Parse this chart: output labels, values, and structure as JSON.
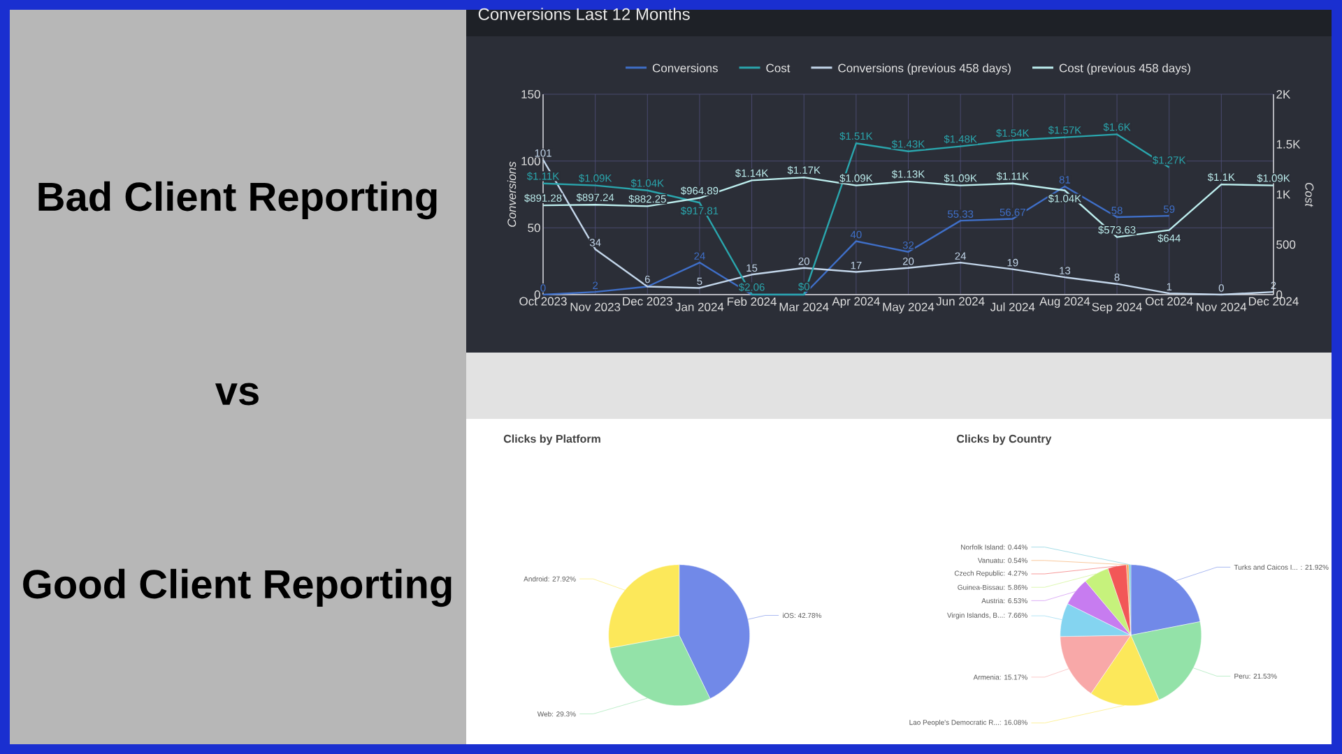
{
  "chart_data": [
    {
      "type": "other",
      "annotations": [
        "Bad Client Reporting",
        "vs",
        "Good Client Reporting"
      ]
    },
    {
      "type": "line",
      "title": "Conversions Last 12 Months",
      "ylabel": "Conversions",
      "y2label": "Cost",
      "categories": [
        "Oct 2023",
        "Nov 2023",
        "Dec 2023",
        "Jan 2024",
        "Feb 2024",
        "Mar 2024",
        "Apr 2024",
        "May 2024",
        "Jun 2024",
        "Jul 2024",
        "Aug 2024",
        "Sep 2024",
        "Oct 2024",
        "Nov 2024",
        "Dec 2024"
      ],
      "ylim": [
        0,
        150
      ],
      "yticks": [
        0,
        50,
        100,
        150
      ],
      "y2lim": [
        0,
        2000
      ],
      "y2ticks": [
        0,
        500,
        {
          "value": 1000,
          "label": "1K"
        },
        {
          "value": 1500,
          "label": "1.5K"
        },
        {
          "value": 2000,
          "label": "2K"
        }
      ],
      "grid": true,
      "legend": "top",
      "series": [
        {
          "name": "Conversions",
          "color": "#3f6fc8",
          "values": [
            0,
            2,
            6,
            24,
            0,
            0,
            40,
            32,
            55.33,
            56.67,
            81,
            58,
            59,
            null,
            null
          ],
          "value_labels": [
            "0",
            "2",
            null,
            "24",
            null,
            null,
            "40",
            "32",
            "55.33",
            "56.67",
            "81",
            "58",
            "59",
            null,
            null
          ]
        },
        {
          "name": "Cost",
          "color": "#2aa6ad",
          "axis": "y2",
          "values": [
            1110,
            1090,
            1040,
            917.81,
            2.06,
            0,
            1510,
            1430,
            1480,
            1540,
            1570,
            1600,
            1270,
            null,
            null
          ],
          "value_labels": [
            "$1.11K",
            "$1.09K",
            "$1.04K",
            "$917.81",
            "$2.06",
            "$0",
            "$1.51K",
            "$1.43K",
            "$1.48K",
            "$1.54K",
            "$1.57K",
            "$1.6K",
            "$1.27K",
            null,
            null
          ]
        },
        {
          "name": "Conversions (previous 458 days)",
          "color": "#c3d6ea",
          "values": [
            101,
            34,
            6,
            5,
            15,
            20,
            17,
            20,
            24,
            19,
            13,
            8,
            1,
            0,
            2
          ],
          "value_labels": [
            "101",
            "34",
            "6",
            "5",
            "15",
            "20",
            "17",
            "20",
            "24",
            "19",
            "13",
            "8",
            "1",
            "0",
            "2"
          ]
        },
        {
          "name": "Cost (previous 458 days)",
          "color": "#bdeeee",
          "axis": "y2",
          "values": [
            891.28,
            897.24,
            882.25,
            964.89,
            1140,
            1170,
            1090,
            1130,
            1090,
            1110,
            1040,
            573.63,
            644,
            1100,
            1090
          ],
          "value_labels": [
            "$891.28",
            "$897.24",
            "$882.25",
            "$964.89",
            "$1.14K",
            "$1.17K",
            "$1.09K",
            "$1.13K",
            "$1.09K",
            "$1.11K",
            "$1.04K",
            "$573.63",
            "$644",
            "$1.1K",
            "$1.09K"
          ]
        }
      ]
    },
    {
      "type": "pie",
      "title": "Clicks by Platform",
      "categories": [
        "iOS",
        "Web",
        "Android"
      ],
      "values": [
        42.78,
        29.3,
        27.92
      ],
      "value_labels": [
        ": 42.78%",
        ": 29.3%",
        ": 27.92%"
      ],
      "colors": [
        "#7189e8",
        "#93e2a8",
        "#fce85a"
      ]
    },
    {
      "type": "pie",
      "title": "Clicks by Country",
      "categories": [
        "Turks and Caicos I...",
        "Peru",
        "Lao People's Democratic R...",
        "Armenia",
        "Virgin Islands, B...",
        "Austria",
        "Guinea-Bissau",
        "Czech Republic",
        "Vanuatu",
        "Norfolk Island"
      ],
      "values": [
        21.92,
        21.53,
        16.08,
        15.17,
        7.66,
        6.53,
        5.86,
        4.27,
        0.54,
        0.44
      ],
      "value_labels": [
        " : 21.92%",
        ": 21.53%",
        ": 16.08%",
        ": 15.17%",
        ": 7.66%",
        ": 6.53%",
        ": 5.86%",
        ": 4.27%",
        ": 0.54%",
        ": 0.44%"
      ],
      "colors": [
        "#7189e8",
        "#93e2a8",
        "#fce85a",
        "#f8a8a8",
        "#84d4f0",
        "#c77cf0",
        "#c6f27c",
        "#f25757",
        "#f5a55a",
        "#6cc7d8"
      ]
    }
  ]
}
